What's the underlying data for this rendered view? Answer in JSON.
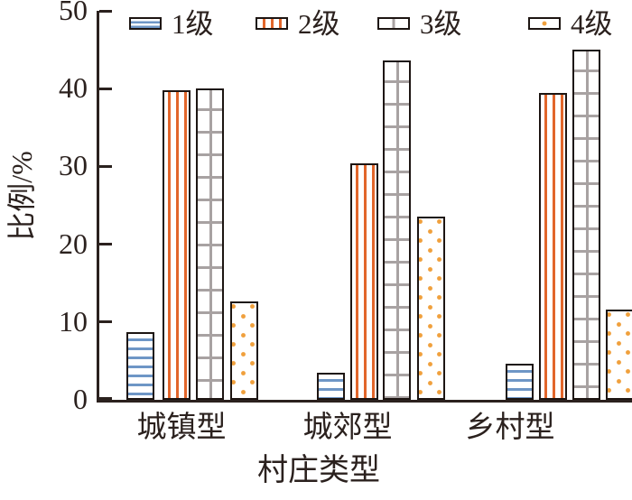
{
  "chart_data": {
    "type": "bar",
    "title": "",
    "xlabel": "村庄类型",
    "ylabel": "比例/%",
    "categories": [
      "城镇型",
      "城郊型",
      "乡村型"
    ],
    "series": [
      {
        "name": "1级",
        "hatch": "horizontal-lines",
        "color": "#6e96c6",
        "values": [
          8.7,
          3.5,
          4.6
        ]
      },
      {
        "name": "2级",
        "hatch": "vertical-lines",
        "color": "#e2662b",
        "values": [
          39.8,
          30.4,
          39.4
        ]
      },
      {
        "name": "3级",
        "hatch": "brick-grid",
        "color": "#a8a2a2",
        "values": [
          40.0,
          43.6,
          45.0
        ]
      },
      {
        "name": "4级",
        "hatch": "dots",
        "color": "#f0a03c",
        "values": [
          12.7,
          23.5,
          11.6
        ]
      }
    ],
    "ylim": [
      0,
      50
    ],
    "yticks": [
      0,
      10,
      20,
      30,
      40,
      50
    ],
    "legend_position": "top",
    "grid": false,
    "bar_fill": "#ffffff",
    "bar_border_color": "#1d1512",
    "axis_color": "#2b211e"
  }
}
